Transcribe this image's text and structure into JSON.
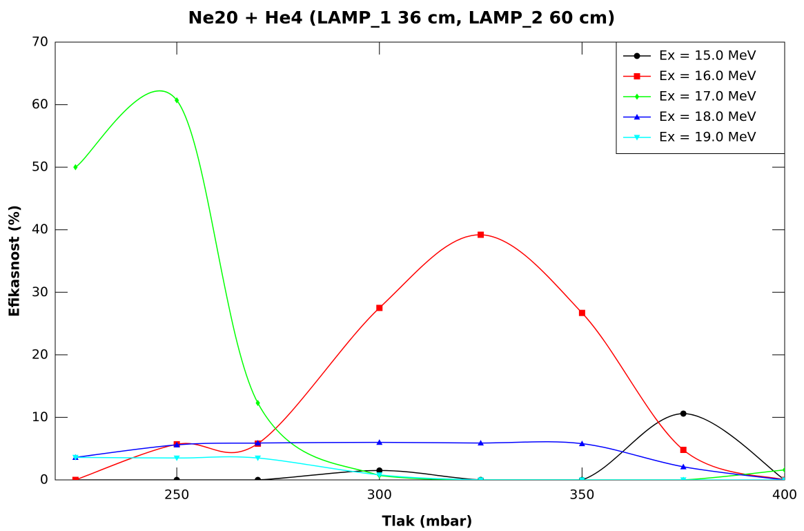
{
  "chart_data": {
    "type": "line",
    "title": "Ne20 + He4 (LAMP_1 36 cm, LAMP_2 60 cm)",
    "x_label": "Tlak (mbar)",
    "y_label": "Efikasnost (%)",
    "x": [
      225,
      250,
      270,
      300,
      325,
      350,
      375,
      400
    ],
    "series": [
      {
        "name": "Ex = 15.0 MeV",
        "color": "#000000",
        "marker": "circle",
        "values": [
          0,
          0,
          0,
          1.5,
          0,
          0,
          10.6,
          0
        ]
      },
      {
        "name": "Ex = 16.0 MeV",
        "color": "#ff0000",
        "marker": "square",
        "values": [
          0,
          5.7,
          5.8,
          27.5,
          39.2,
          26.7,
          4.8,
          0
        ]
      },
      {
        "name": "Ex = 17.0 MeV",
        "color": "#00ff00",
        "marker": "diamond",
        "values": [
          50,
          60.7,
          12.3,
          0.7,
          0,
          0,
          0,
          1.6
        ]
      },
      {
        "name": "Ex = 18.0 MeV",
        "color": "#0000ff",
        "marker": "triangle-up",
        "values": [
          3.6,
          5.6,
          5.9,
          6.0,
          5.9,
          5.8,
          2.1,
          0
        ]
      },
      {
        "name": "Ex = 19.0 MeV",
        "color": "#00ffff",
        "marker": "triangle-down",
        "values": [
          3.6,
          3.5,
          3.5,
          0.8,
          0,
          0,
          0,
          0
        ]
      }
    ],
    "xlim": [
      220,
      400
    ],
    "ylim": [
      0,
      70
    ],
    "xticks": [
      250,
      300,
      350,
      400
    ],
    "yticks": [
      0,
      10,
      20,
      30,
      40,
      50,
      60,
      70
    ],
    "smooth": true,
    "legend": "top-right"
  }
}
